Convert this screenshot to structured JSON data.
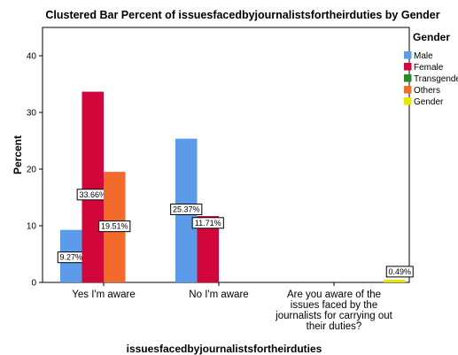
{
  "chart_data": {
    "type": "bar",
    "title": "Clustered Bar Percent of issuesfacedbyjournalistsfortheirduties by Gender",
    "xlabel": "issuesfacedbyjournalistsfortheirduties",
    "ylabel": "Percent",
    "ylim": [
      0,
      45
    ],
    "yticks": [
      0,
      10,
      20,
      30,
      40
    ],
    "grid": false,
    "legend_position": "right",
    "legend_title": "Gender",
    "categories": [
      [
        "Yes I'm aware"
      ],
      [
        "No I'm aware"
      ],
      [
        "Are you aware of the",
        "issues faced by the",
        "journalists for carrying out",
        "their duties?"
      ]
    ],
    "series": [
      {
        "name": "Male",
        "color": "#5b9bea",
        "values": [
          9.27,
          25.37,
          null
        ],
        "labels": [
          "9.27%",
          "25.37%",
          ""
        ]
      },
      {
        "name": "Female",
        "color": "#d1063b",
        "values": [
          33.66,
          11.71,
          null
        ],
        "labels": [
          "33.66%",
          "11.71%",
          ""
        ]
      },
      {
        "name": "Transgender",
        "color": "#2a8a2a",
        "values": [
          null,
          null,
          null
        ],
        "labels": [
          "",
          "",
          ""
        ]
      },
      {
        "name": "Others",
        "color": "#f26b2c",
        "values": [
          19.51,
          null,
          null
        ],
        "labels": [
          "19.51%",
          "",
          ""
        ]
      },
      {
        "name": "Gender",
        "color": "#e6e600",
        "values": [
          null,
          null,
          0.49
        ],
        "labels": [
          "",
          "",
          "0.49%"
        ]
      }
    ]
  }
}
